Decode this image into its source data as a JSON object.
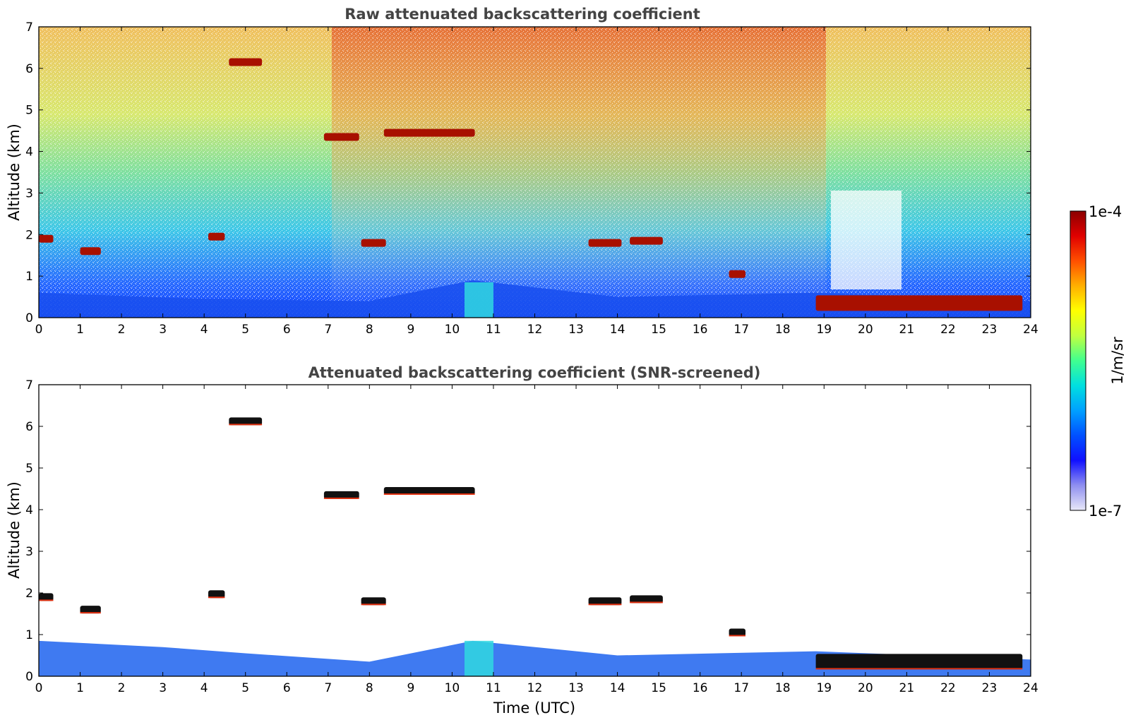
{
  "chart_data": [
    {
      "type": "heatmap",
      "title": "Raw attenuated backscattering coefficient",
      "xlabel": "",
      "ylabel": "Altitude (km)",
      "xlim": [
        0,
        24
      ],
      "ylim": [
        0,
        7
      ],
      "xticks": [
        "0",
        "1",
        "2",
        "3",
        "4",
        "5",
        "6",
        "7",
        "8",
        "9",
        "10",
        "11",
        "12",
        "13",
        "14",
        "15",
        "16",
        "17",
        "18",
        "19",
        "20",
        "21",
        "22",
        "23",
        "24"
      ],
      "yticks": [
        "0",
        "1",
        "2",
        "3",
        "4",
        "5",
        "6",
        "7"
      ],
      "boundary_layer_top_km": [
        [
          0,
          0.6
        ],
        [
          4,
          0.45
        ],
        [
          8,
          0.4
        ],
        [
          10.5,
          0.9
        ],
        [
          14,
          0.5
        ],
        [
          18.8,
          0.6
        ],
        [
          24,
          0.4
        ]
      ],
      "cloud_layers": [
        {
          "t_start": 0.0,
          "t_end": 0.35,
          "alt_km": 1.9
        },
        {
          "t_start": 1.0,
          "t_end": 1.5,
          "alt_km": 1.6
        },
        {
          "t_start": 4.1,
          "t_end": 4.5,
          "alt_km": 1.95
        },
        {
          "t_start": 4.6,
          "t_end": 5.4,
          "alt_km": 6.15
        },
        {
          "t_start": 6.9,
          "t_end": 7.75,
          "alt_km": 4.35
        },
        {
          "t_start": 7.8,
          "t_end": 8.4,
          "alt_km": 1.8
        },
        {
          "t_start": 8.35,
          "t_end": 10.55,
          "alt_km": 4.45
        },
        {
          "t_start": 13.3,
          "t_end": 14.1,
          "alt_km": 1.8
        },
        {
          "t_start": 14.3,
          "t_end": 15.1,
          "alt_km": 1.85
        },
        {
          "t_start": 16.7,
          "t_end": 17.1,
          "alt_km": 1.05
        },
        {
          "t_start": 18.8,
          "t_end": 23.8,
          "alt_km": 0.35
        }
      ]
    },
    {
      "type": "heatmap",
      "title": "Attenuated backscattering coefficient (SNR-screened)",
      "xlabel": "Time (UTC)",
      "ylabel": "Altitude (km)",
      "xlim": [
        0,
        24
      ],
      "ylim": [
        0,
        7
      ],
      "xticks": [
        "0",
        "1",
        "2",
        "3",
        "4",
        "5",
        "6",
        "7",
        "8",
        "9",
        "10",
        "11",
        "12",
        "13",
        "14",
        "15",
        "16",
        "17",
        "18",
        "19",
        "20",
        "21",
        "22",
        "23",
        "24"
      ],
      "yticks": [
        "0",
        "1",
        "2",
        "3",
        "4",
        "5",
        "6",
        "7"
      ],
      "boundary_layer_top_km": [
        [
          0,
          0.85
        ],
        [
          3,
          0.7
        ],
        [
          5,
          0.55
        ],
        [
          8,
          0.35
        ],
        [
          10.5,
          0.85
        ],
        [
          14,
          0.5
        ],
        [
          18.8,
          0.6
        ],
        [
          24,
          0.4
        ]
      ],
      "cloud_layers": [
        {
          "t_start": 0.0,
          "t_end": 0.35,
          "alt_km": 1.9
        },
        {
          "t_start": 1.0,
          "t_end": 1.5,
          "alt_km": 1.6
        },
        {
          "t_start": 4.1,
          "t_end": 4.5,
          "alt_km": 1.97
        },
        {
          "t_start": 4.6,
          "t_end": 5.4,
          "alt_km": 6.12
        },
        {
          "t_start": 6.9,
          "t_end": 7.75,
          "alt_km": 4.35
        },
        {
          "t_start": 7.8,
          "t_end": 8.4,
          "alt_km": 1.8
        },
        {
          "t_start": 8.35,
          "t_end": 10.55,
          "alt_km": 4.45
        },
        {
          "t_start": 13.3,
          "t_end": 14.1,
          "alt_km": 1.8
        },
        {
          "t_start": 14.3,
          "t_end": 15.1,
          "alt_km": 1.85
        },
        {
          "t_start": 16.7,
          "t_end": 17.1,
          "alt_km": 1.05
        },
        {
          "t_start": 18.8,
          "t_end": 23.8,
          "alt_km": 0.35
        }
      ]
    }
  ],
  "colorbar": {
    "label": "1/m/sr",
    "max_label": "1e-4",
    "min_label": "1e-7",
    "scale": "log",
    "colormap": [
      "#e8e8f8",
      "#9090f0",
      "#1010ff",
      "#0050ff",
      "#00a0ff",
      "#00e0e0",
      "#40ff90",
      "#c0ff40",
      "#ffff00",
      "#ffb000",
      "#ff5000",
      "#e00000",
      "#8b0000"
    ]
  }
}
